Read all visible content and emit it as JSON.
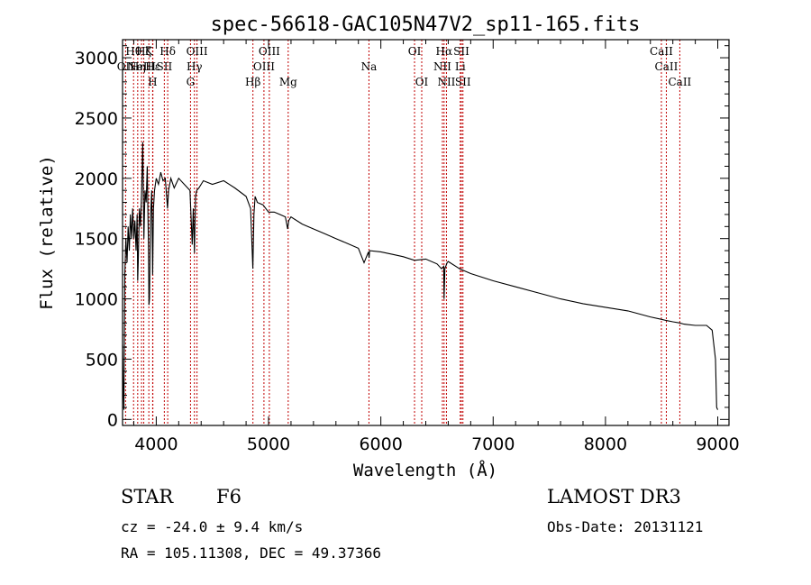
{
  "chart_data": {
    "type": "line",
    "title": "spec-56618-GAC105N47V2_sp11-165.fits",
    "xlabel": "Wavelength (Å)",
    "ylabel": "Flux (relative)",
    "xlim": [
      3700,
      9100
    ],
    "ylim": [
      -50,
      3150
    ],
    "xticks": [
      {
        "value": 4000,
        "label": "4000"
      },
      {
        "value": 5000,
        "label": "5000"
      },
      {
        "value": 6000,
        "label": "6000"
      },
      {
        "value": 7000,
        "label": "7000"
      },
      {
        "value": 8000,
        "label": "8000"
      },
      {
        "value": 9000,
        "label": "9000"
      }
    ],
    "yticks": [
      {
        "value": 0,
        "label": "0"
      },
      {
        "value": 500,
        "label": "500"
      },
      {
        "value": 1000,
        "label": "1000"
      },
      {
        "value": 1500,
        "label": "1500"
      },
      {
        "value": 2000,
        "label": "2000"
      },
      {
        "value": 2500,
        "label": "2500"
      },
      {
        "value": 3000,
        "label": "3000"
      }
    ],
    "series": [
      {
        "name": "flux",
        "x": [
          3700,
          3705,
          3712,
          3720,
          3730,
          3740,
          3750,
          3760,
          3770,
          3780,
          3790,
          3800,
          3810,
          3820,
          3830,
          3835,
          3840,
          3850,
          3860,
          3870,
          3880,
          3885,
          3890,
          3900,
          3910,
          3920,
          3930,
          3935,
          3940,
          3945,
          3950,
          3960,
          3968,
          3975,
          3985,
          4000,
          4020,
          4040,
          4060,
          4080,
          4100,
          4110,
          4130,
          4160,
          4200,
          4250,
          4300,
          4320,
          4330,
          4340,
          4350,
          4360,
          4380,
          4420,
          4500,
          4600,
          4700,
          4800,
          4840,
          4860,
          4870,
          4880,
          4900,
          4950,
          5000,
          5050,
          5100,
          5150,
          5170,
          5180,
          5200,
          5300,
          5400,
          5500,
          5600,
          5700,
          5800,
          5850,
          5890,
          5895,
          5900,
          6000,
          6100,
          6200,
          6300,
          6400,
          6500,
          6540,
          6560,
          6563,
          6570,
          6590,
          6600,
          6700,
          6800,
          7000,
          7200,
          7400,
          7600,
          7800,
          8000,
          8200,
          8400,
          8500,
          8542,
          8600,
          8662,
          8700,
          8800,
          8900,
          8950,
          8980,
          8990,
          9000
        ],
        "y": [
          620,
          300,
          80,
          1200,
          1500,
          1300,
          1600,
          1400,
          1700,
          1500,
          1750,
          1500,
          1650,
          1400,
          1700,
          1150,
          1300,
          1750,
          1600,
          1900,
          2300,
          1850,
          1500,
          1900,
          1800,
          2100,
          1450,
          950,
          1000,
          1400,
          1700,
          1900,
          1200,
          1750,
          1900,
          2000,
          1950,
          2050,
          1980,
          2000,
          1750,
          1900,
          2000,
          1920,
          2000,
          1950,
          1900,
          1450,
          1750,
          1380,
          1850,
          1900,
          1920,
          1980,
          1950,
          1980,
          1920,
          1850,
          1750,
          1250,
          1700,
          1850,
          1800,
          1780,
          1720,
          1720,
          1700,
          1680,
          1580,
          1650,
          1680,
          1620,
          1580,
          1540,
          1500,
          1460,
          1420,
          1300,
          1390,
          1340,
          1400,
          1390,
          1370,
          1350,
          1320,
          1330,
          1290,
          1250,
          1270,
          1000,
          1250,
          1300,
          1310,
          1250,
          1210,
          1150,
          1100,
          1050,
          1000,
          960,
          930,
          900,
          850,
          830,
          820,
          810,
          800,
          790,
          780,
          780,
          740,
          500,
          100,
          80
        ]
      }
    ],
    "line_markers": [
      {
        "wavelength": 3727,
        "label": "OII",
        "row": 2
      },
      {
        "wavelength": 3798,
        "label": "Hθ",
        "row": 1
      },
      {
        "wavelength": 3835,
        "label": "Hη",
        "row": 2
      },
      {
        "wavelength": 3869,
        "label": "NeIII",
        "row": 2
      },
      {
        "wavelength": 3889,
        "label": "Hζ",
        "row": 1
      },
      {
        "wavelength": 3934,
        "label": "K",
        "row": 1
      },
      {
        "wavelength": 3968,
        "label": "H",
        "row": 3
      },
      {
        "wavelength": 3970,
        "label": "Hε",
        "row": 2
      },
      {
        "wavelength": 4072,
        "label": "SII",
        "row": 2
      },
      {
        "wavelength": 4102,
        "label": "Hδ",
        "row": 1
      },
      {
        "wavelength": 4305,
        "label": "G",
        "row": 3
      },
      {
        "wavelength": 4340,
        "label": "Hγ",
        "row": 2
      },
      {
        "wavelength": 4363,
        "label": "OIII",
        "row": 1
      },
      {
        "wavelength": 4861,
        "label": "Hβ",
        "row": 3
      },
      {
        "wavelength": 4959,
        "label": "OIII",
        "row": 2
      },
      {
        "wavelength": 5007,
        "label": "OIII",
        "row": 1
      },
      {
        "wavelength": 5175,
        "label": "Mg",
        "row": 3
      },
      {
        "wavelength": 5894,
        "label": "Na",
        "row": 2
      },
      {
        "wavelength": 6300,
        "label": "OI",
        "row": 1
      },
      {
        "wavelength": 6364,
        "label": "OI",
        "row": 3
      },
      {
        "wavelength": 6548,
        "label": "NII",
        "row": 2
      },
      {
        "wavelength": 6563,
        "label": "Hα",
        "row": 1
      },
      {
        "wavelength": 6584,
        "label": "NII",
        "row": 3
      },
      {
        "wavelength": 6707,
        "label": "Li",
        "row": 2
      },
      {
        "wavelength": 6717,
        "label": "SII",
        "row": 1
      },
      {
        "wavelength": 6731,
        "label": "SII",
        "row": 3
      },
      {
        "wavelength": 8498,
        "label": "CaII",
        "row": 1
      },
      {
        "wavelength": 8542,
        "label": "CaII",
        "row": 2
      },
      {
        "wavelength": 8662,
        "label": "CaII",
        "row": 3
      }
    ],
    "marker_color": "#c00000",
    "grid": false,
    "legend": "none"
  },
  "info": {
    "object_class": "STAR",
    "subclass": "F6",
    "survey": "LAMOST DR3",
    "velocity": "cz = -24.0 ± 9.4 km/s",
    "obs_date": "Obs-Date: 20131121",
    "coords": "RA = 105.11308, DEC =  49.37366"
  }
}
